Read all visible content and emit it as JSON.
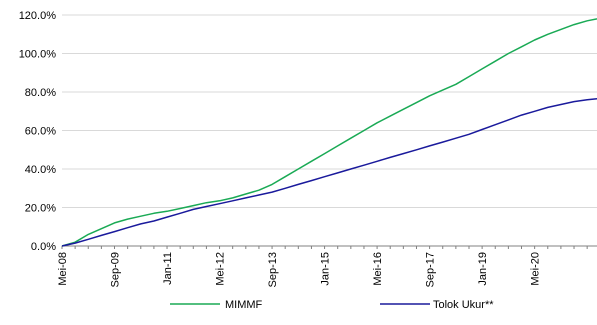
{
  "chart_data": {
    "type": "line",
    "title": "",
    "xlabel": "",
    "ylabel": "",
    "ylim": [
      0,
      120
    ],
    "y_ticks": [
      0,
      20,
      40,
      60,
      80,
      100,
      120
    ],
    "y_tick_labels": [
      "0.0%",
      "20.0%",
      "40.0%",
      "60.0%",
      "80.0%",
      "100.0%",
      "120.0%"
    ],
    "x_start": "2008-05",
    "x_end": "2021-12",
    "x_tick_labels": [
      "Mei-08",
      "Sep-09",
      "Jan-11",
      "Mei-12",
      "Sep-13",
      "Jan-15",
      "Mei-16",
      "Sep-17",
      "Jan-19",
      "Mei-20"
    ],
    "x_tick_dates": [
      "2008-05",
      "2009-09",
      "2011-01",
      "2012-05",
      "2013-09",
      "2015-01",
      "2016-05",
      "2017-09",
      "2019-01",
      "2020-05"
    ],
    "grid": "horizontal",
    "legend_position": "bottom",
    "series": [
      {
        "name": "MIMMF",
        "color": "#1aaa55",
        "points": [
          [
            "2008-05",
            0
          ],
          [
            "2008-09",
            2
          ],
          [
            "2009-01",
            6
          ],
          [
            "2009-05",
            9
          ],
          [
            "2009-09",
            12
          ],
          [
            "2010-01",
            14
          ],
          [
            "2010-05",
            15.5
          ],
          [
            "2010-09",
            17
          ],
          [
            "2011-01",
            18
          ],
          [
            "2011-05",
            19.5
          ],
          [
            "2011-09",
            21
          ],
          [
            "2012-01",
            22.5
          ],
          [
            "2012-05",
            23.5
          ],
          [
            "2012-09",
            25
          ],
          [
            "2013-01",
            27
          ],
          [
            "2013-05",
            29
          ],
          [
            "2013-09",
            32
          ],
          [
            "2014-01",
            36
          ],
          [
            "2014-05",
            40
          ],
          [
            "2014-09",
            44
          ],
          [
            "2015-01",
            48
          ],
          [
            "2015-05",
            52
          ],
          [
            "2015-09",
            56
          ],
          [
            "2016-01",
            60
          ],
          [
            "2016-05",
            64
          ],
          [
            "2016-09",
            67.5
          ],
          [
            "2017-01",
            71
          ],
          [
            "2017-05",
            74.5
          ],
          [
            "2017-09",
            78
          ],
          [
            "2018-01",
            81
          ],
          [
            "2018-05",
            84
          ],
          [
            "2018-09",
            88
          ],
          [
            "2019-01",
            92
          ],
          [
            "2019-05",
            96
          ],
          [
            "2019-09",
            100
          ],
          [
            "2020-01",
            103.5
          ],
          [
            "2020-05",
            107
          ],
          [
            "2020-09",
            110
          ],
          [
            "2021-01",
            112.5
          ],
          [
            "2021-05",
            115
          ],
          [
            "2021-09",
            117
          ],
          [
            "2021-12",
            118
          ]
        ]
      },
      {
        "name": "Tolok Ukur**",
        "color": "#1a1a9c",
        "points": [
          [
            "2008-05",
            0
          ],
          [
            "2008-09",
            1.5
          ],
          [
            "2009-01",
            3.5
          ],
          [
            "2009-05",
            5.5
          ],
          [
            "2009-09",
            7.5
          ],
          [
            "2010-01",
            9.5
          ],
          [
            "2010-05",
            11.5
          ],
          [
            "2010-09",
            13
          ],
          [
            "2011-01",
            15
          ],
          [
            "2011-05",
            17
          ],
          [
            "2011-09",
            19
          ],
          [
            "2012-01",
            20.5
          ],
          [
            "2012-05",
            22
          ],
          [
            "2012-09",
            23.5
          ],
          [
            "2013-01",
            25
          ],
          [
            "2013-05",
            26.5
          ],
          [
            "2013-09",
            28
          ],
          [
            "2014-01",
            30
          ],
          [
            "2014-05",
            32
          ],
          [
            "2014-09",
            34
          ],
          [
            "2015-01",
            36
          ],
          [
            "2015-05",
            38
          ],
          [
            "2015-09",
            40
          ],
          [
            "2016-01",
            42
          ],
          [
            "2016-05",
            44
          ],
          [
            "2016-09",
            46
          ],
          [
            "2017-01",
            48
          ],
          [
            "2017-05",
            50
          ],
          [
            "2017-09",
            52
          ],
          [
            "2018-01",
            54
          ],
          [
            "2018-05",
            56
          ],
          [
            "2018-09",
            58
          ],
          [
            "2019-01",
            60.5
          ],
          [
            "2019-05",
            63
          ],
          [
            "2019-09",
            65.5
          ],
          [
            "2020-01",
            68
          ],
          [
            "2020-05",
            70
          ],
          [
            "2020-09",
            72
          ],
          [
            "2021-01",
            73.5
          ],
          [
            "2021-05",
            75
          ],
          [
            "2021-09",
            76
          ],
          [
            "2021-12",
            76.5
          ]
        ]
      }
    ]
  }
}
